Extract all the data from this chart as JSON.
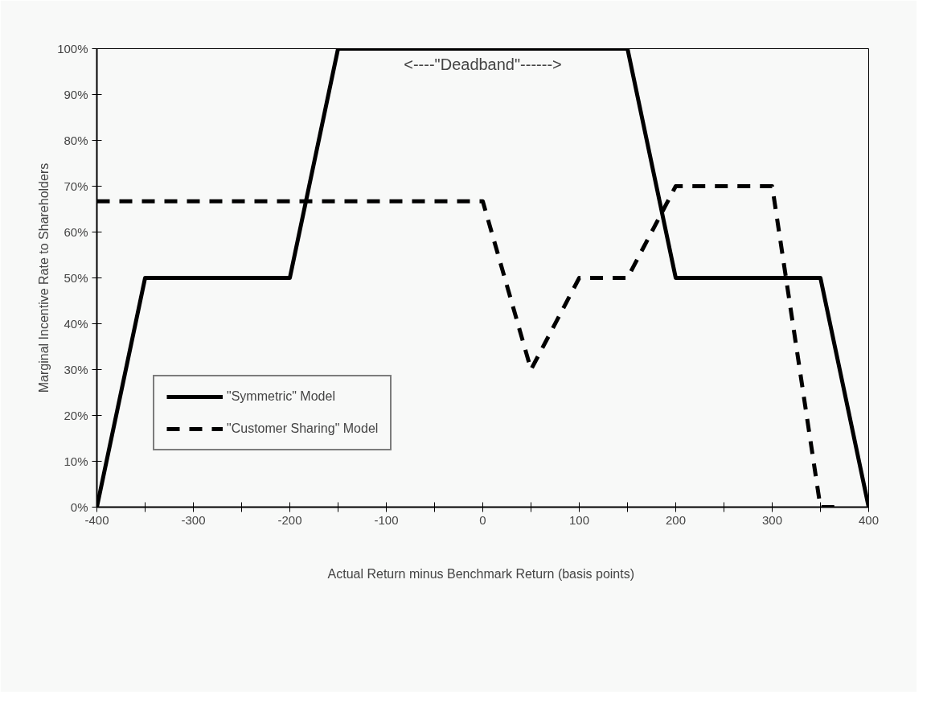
{
  "chart_data": {
    "type": "line",
    "xlabel": "Actual Return minus Benchmark Return  (basis points)",
    "ylabel": "Marginal Incentive Rate to Shareholders",
    "series": [
      {
        "name": "\"Symmetric\" Model",
        "color": "#000000",
        "line_style": "solid",
        "x": [
          -400,
          -350,
          -200,
          -150,
          150,
          200,
          350,
          400
        ],
        "values": [
          0,
          50,
          50,
          100,
          100,
          50,
          50,
          0
        ]
      },
      {
        "name": "\"Customer Sharing\" Model",
        "color": "#000000",
        "line_style": "dashed",
        "x": [
          -400,
          0,
          50,
          100,
          150,
          200,
          300,
          350,
          370
        ],
        "values": [
          66.7,
          66.7,
          30,
          50,
          50,
          70,
          70,
          0,
          0
        ]
      }
    ],
    "xlim": [
      -400,
      400
    ],
    "xticks": [
      -400,
      {
        "value": -350,
        "label": null
      },
      -300,
      {
        "value": -250,
        "label": null
      },
      -200,
      {
        "value": -150,
        "label": null
      },
      -100,
      {
        "value": -50,
        "label": null
      },
      0,
      {
        "value": 50,
        "label": null
      },
      100,
      {
        "value": 150,
        "label": null
      },
      200,
      {
        "value": 250,
        "label": null
      },
      300,
      {
        "value": 350,
        "label": null
      },
      400
    ],
    "ylim": [
      0,
      100
    ],
    "yticks": [
      {
        "value": 0,
        "label": "0%"
      },
      {
        "value": 10,
        "label": "10%"
      },
      {
        "value": 20,
        "label": "20%"
      },
      {
        "value": 30,
        "label": "30%"
      },
      {
        "value": 40,
        "label": "40%"
      },
      {
        "value": 50,
        "label": "50%"
      },
      {
        "value": 60,
        "label": "60%"
      },
      {
        "value": 70,
        "label": "70%"
      },
      {
        "value": 80,
        "label": "80%"
      },
      {
        "value": 90,
        "label": "90%"
      },
      {
        "value": 100,
        "label": "100%"
      }
    ],
    "annotations": [
      "<----\"Deadband\"------>"
    ],
    "grid": false,
    "legend": "bottom left",
    "marker": "none"
  }
}
